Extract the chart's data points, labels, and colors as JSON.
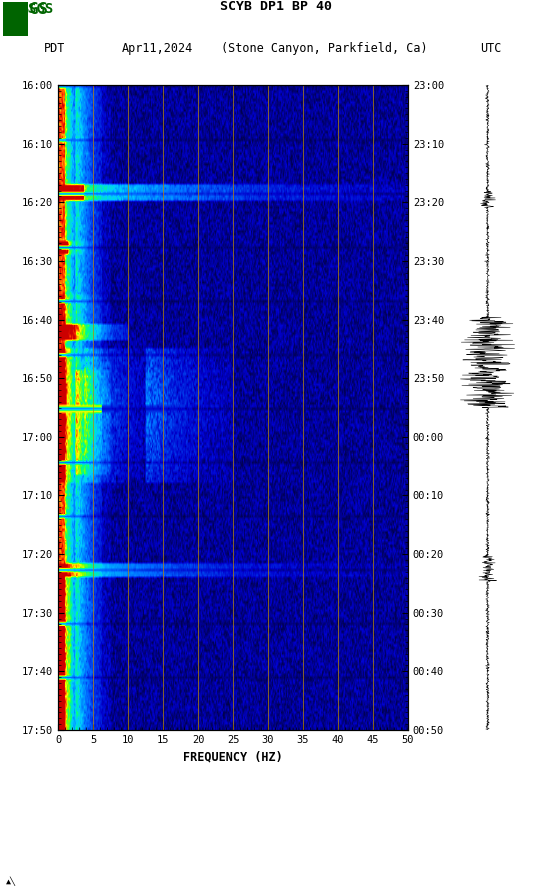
{
  "title_line1": "SCYB DP1 BP 40",
  "title_line2_left": "PDT",
  "title_line2_date": "Apr11,2024",
  "title_line2_loc": "(Stone Canyon, Parkfield, Ca)",
  "title_line2_right": "UTC",
  "xlabel": "FREQUENCY (HZ)",
  "freq_min": 0,
  "freq_max": 50,
  "freq_ticks": [
    0,
    5,
    10,
    15,
    20,
    25,
    30,
    35,
    40,
    45,
    50
  ],
  "time_labels_left": [
    "16:00",
    "16:10",
    "16:20",
    "16:30",
    "16:40",
    "16:50",
    "17:00",
    "17:10",
    "17:20",
    "17:30",
    "17:40",
    "17:50"
  ],
  "time_labels_right": [
    "23:00",
    "23:10",
    "23:20",
    "23:30",
    "23:40",
    "23:50",
    "00:00",
    "00:10",
    "00:20",
    "00:30",
    "00:40",
    "00:50"
  ],
  "vline_freqs": [
    5,
    10,
    15,
    20,
    25,
    30,
    35,
    40,
    45
  ],
  "vline_color": "#b8860b",
  "background_color": "#ffffff",
  "logo_color": "#006400",
  "n_time_bins": 240,
  "n_freq_bins": 400
}
